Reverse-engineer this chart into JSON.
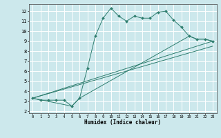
{
  "xlabel": "Humidex (Indice chaleur)",
  "bg_color": "#cce8ec",
  "grid_color": "#ffffff",
  "line_color": "#2e7d6e",
  "xlim": [
    -0.5,
    23.5
  ],
  "ylim": [
    1.8,
    12.7
  ],
  "xticks": [
    0,
    1,
    2,
    3,
    4,
    5,
    6,
    7,
    8,
    9,
    10,
    11,
    12,
    13,
    14,
    15,
    16,
    17,
    18,
    19,
    20,
    21,
    22,
    23
  ],
  "yticks": [
    2,
    3,
    4,
    5,
    6,
    7,
    8,
    9,
    10,
    11,
    12
  ],
  "series1_x": [
    0,
    1,
    2,
    3,
    4,
    5,
    6,
    7,
    8,
    9,
    10,
    11,
    12,
    13,
    14,
    15,
    16,
    17,
    18,
    19,
    20,
    21,
    22,
    23
  ],
  "series1_y": [
    3.3,
    3.1,
    3.1,
    3.1,
    3.1,
    2.5,
    3.3,
    6.3,
    9.5,
    11.3,
    12.3,
    11.5,
    11.0,
    11.5,
    11.3,
    11.3,
    11.9,
    12.0,
    11.1,
    10.4,
    9.5,
    9.2,
    9.2,
    9.0
  ],
  "series2_x": [
    0,
    5,
    6,
    20,
    21,
    22,
    23
  ],
  "series2_y": [
    3.3,
    2.5,
    3.3,
    9.5,
    9.2,
    9.2,
    9.0
  ],
  "series3_x": [
    0,
    23
  ],
  "series3_y": [
    3.3,
    9.0
  ],
  "series4_x": [
    0,
    23
  ],
  "series4_y": [
    3.3,
    8.5
  ]
}
